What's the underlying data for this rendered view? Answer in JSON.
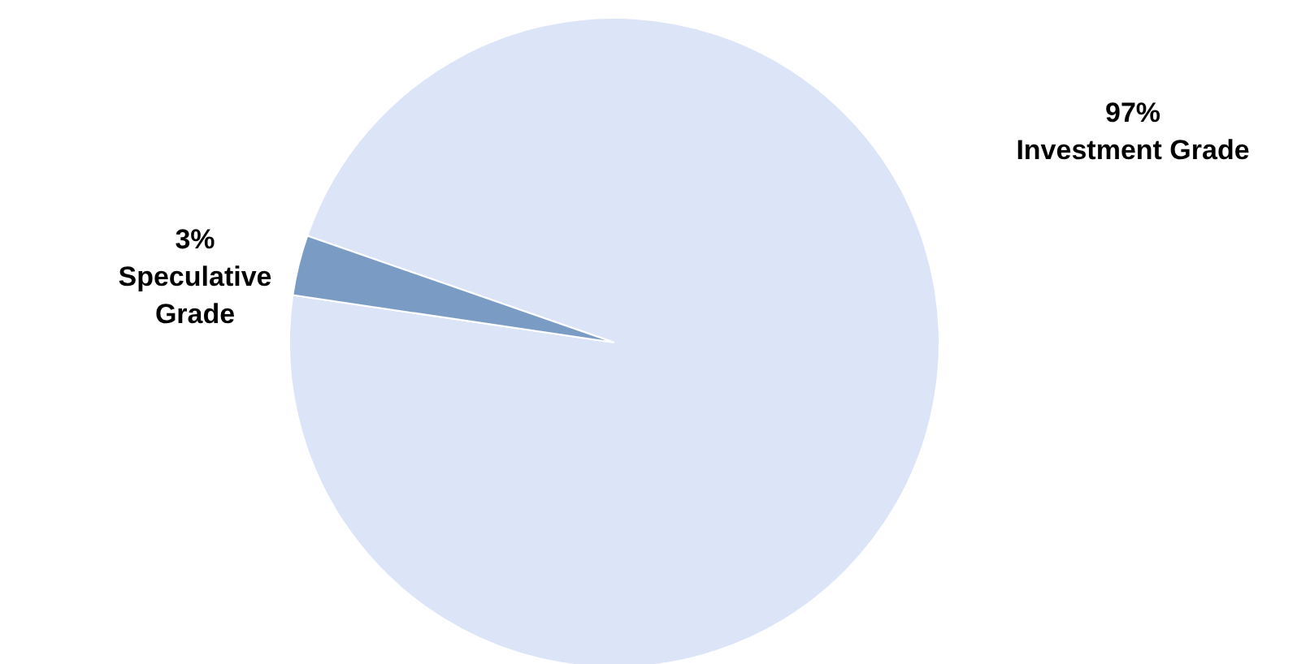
{
  "chart_data": {
    "type": "pie",
    "categories": [
      "Investment Grade",
      "Speculative Grade"
    ],
    "values": [
      97,
      3
    ],
    "value_labels": [
      "97%",
      "3%"
    ],
    "colors": [
      "#dce4f8",
      "#7a9cc4"
    ]
  }
}
